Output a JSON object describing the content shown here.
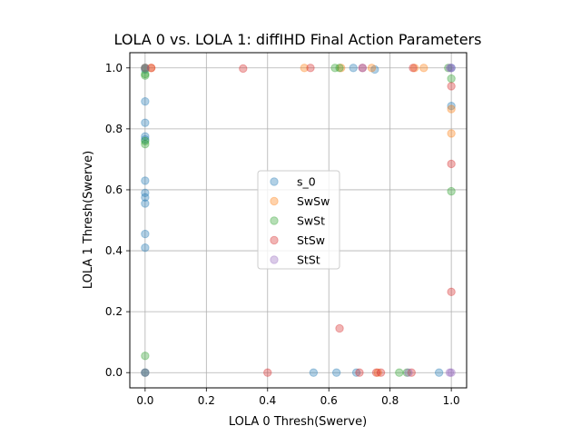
{
  "chart_data": {
    "type": "scatter",
    "title": "LOLA 0 vs. LOLA 1: diffIHD Final Action Parameters",
    "xlabel": "LOLA 0 Thresh(Swerve)",
    "ylabel": "LOLA 1 Thresh(Swerve)",
    "xlim": [
      -0.05,
      1.05
    ],
    "ylim": [
      -0.05,
      1.05
    ],
    "xticks": [
      "0.0",
      "0.2",
      "0.4",
      "0.6",
      "0.8",
      "1.0"
    ],
    "yticks": [
      "0.0",
      "0.2",
      "0.4",
      "0.6",
      "0.8",
      "1.0"
    ],
    "grid": true,
    "legend_position": "center",
    "marker_alpha": 0.35,
    "series": [
      {
        "name": "s_0",
        "color": "#1f77b4",
        "points": [
          [
            0,
            1.0
          ],
          [
            0,
            0.995
          ],
          [
            0,
            0.89
          ],
          [
            0,
            0.82
          ],
          [
            0,
            0.775
          ],
          [
            0,
            0.765
          ],
          [
            0,
            0.63
          ],
          [
            0,
            0.59
          ],
          [
            0,
            0.575
          ],
          [
            0,
            0.555
          ],
          [
            0,
            0.455
          ],
          [
            0,
            0.41
          ],
          [
            0,
            0.0
          ],
          [
            0.55,
            0.0
          ],
          [
            0.625,
            0.0
          ],
          [
            0.69,
            0.0
          ],
          [
            0.96,
            0.0
          ],
          [
            0.68,
            1.0
          ],
          [
            0.75,
            0.995
          ],
          [
            1.0,
            0.875
          ],
          [
            1.0,
            1.0
          ]
        ]
      },
      {
        "name": "SwSw",
        "color": "#ff7f0e",
        "points": [
          [
            0.02,
            1.0
          ],
          [
            0.52,
            1.0
          ],
          [
            0.64,
            1.0
          ],
          [
            0.74,
            1.0
          ],
          [
            0.88,
            1.0
          ],
          [
            0.91,
            1.0
          ],
          [
            1.0,
            0.865
          ],
          [
            1.0,
            0.785
          ],
          [
            0.76,
            0.0
          ],
          [
            0.0,
            1.0
          ]
        ]
      },
      {
        "name": "SwSt",
        "color": "#2ca02c",
        "points": [
          [
            0,
            1.0
          ],
          [
            0,
            0.98
          ],
          [
            0,
            0.975
          ],
          [
            0,
            0.76
          ],
          [
            0,
            0.75
          ],
          [
            0,
            0.055
          ],
          [
            0,
            0.0
          ],
          [
            0.62,
            1.0
          ],
          [
            0.635,
            1.0
          ],
          [
            0.99,
            1.0
          ],
          [
            1.0,
            0.965
          ],
          [
            1.0,
            0.595
          ],
          [
            0.83,
            0.0
          ],
          [
            0.855,
            0.0
          ]
        ]
      },
      {
        "name": "StSw",
        "color": "#d62728",
        "points": [
          [
            0.02,
            1.0
          ],
          [
            0.32,
            0.998
          ],
          [
            0.54,
            1.0
          ],
          [
            0.71,
            1.0
          ],
          [
            0.875,
            1.0
          ],
          [
            1.0,
            0.94
          ],
          [
            1.0,
            0.685
          ],
          [
            1.0,
            0.265
          ],
          [
            0.635,
            0.145
          ],
          [
            0.4,
            0.0
          ],
          [
            0.7,
            0.0
          ],
          [
            0.755,
            0.0
          ],
          [
            0.77,
            0.0
          ],
          [
            0.87,
            0.0
          ]
        ]
      },
      {
        "name": "StSt",
        "color": "#9467bd",
        "points": [
          [
            0,
            1.0
          ],
          [
            0,
            0.0
          ],
          [
            0.71,
            1.0
          ],
          [
            1.0,
            1.0
          ],
          [
            0.995,
            1.0
          ],
          [
            1.0,
            0.0
          ],
          [
            0.995,
            0.0
          ],
          [
            0.86,
            0.0
          ]
        ]
      }
    ]
  }
}
